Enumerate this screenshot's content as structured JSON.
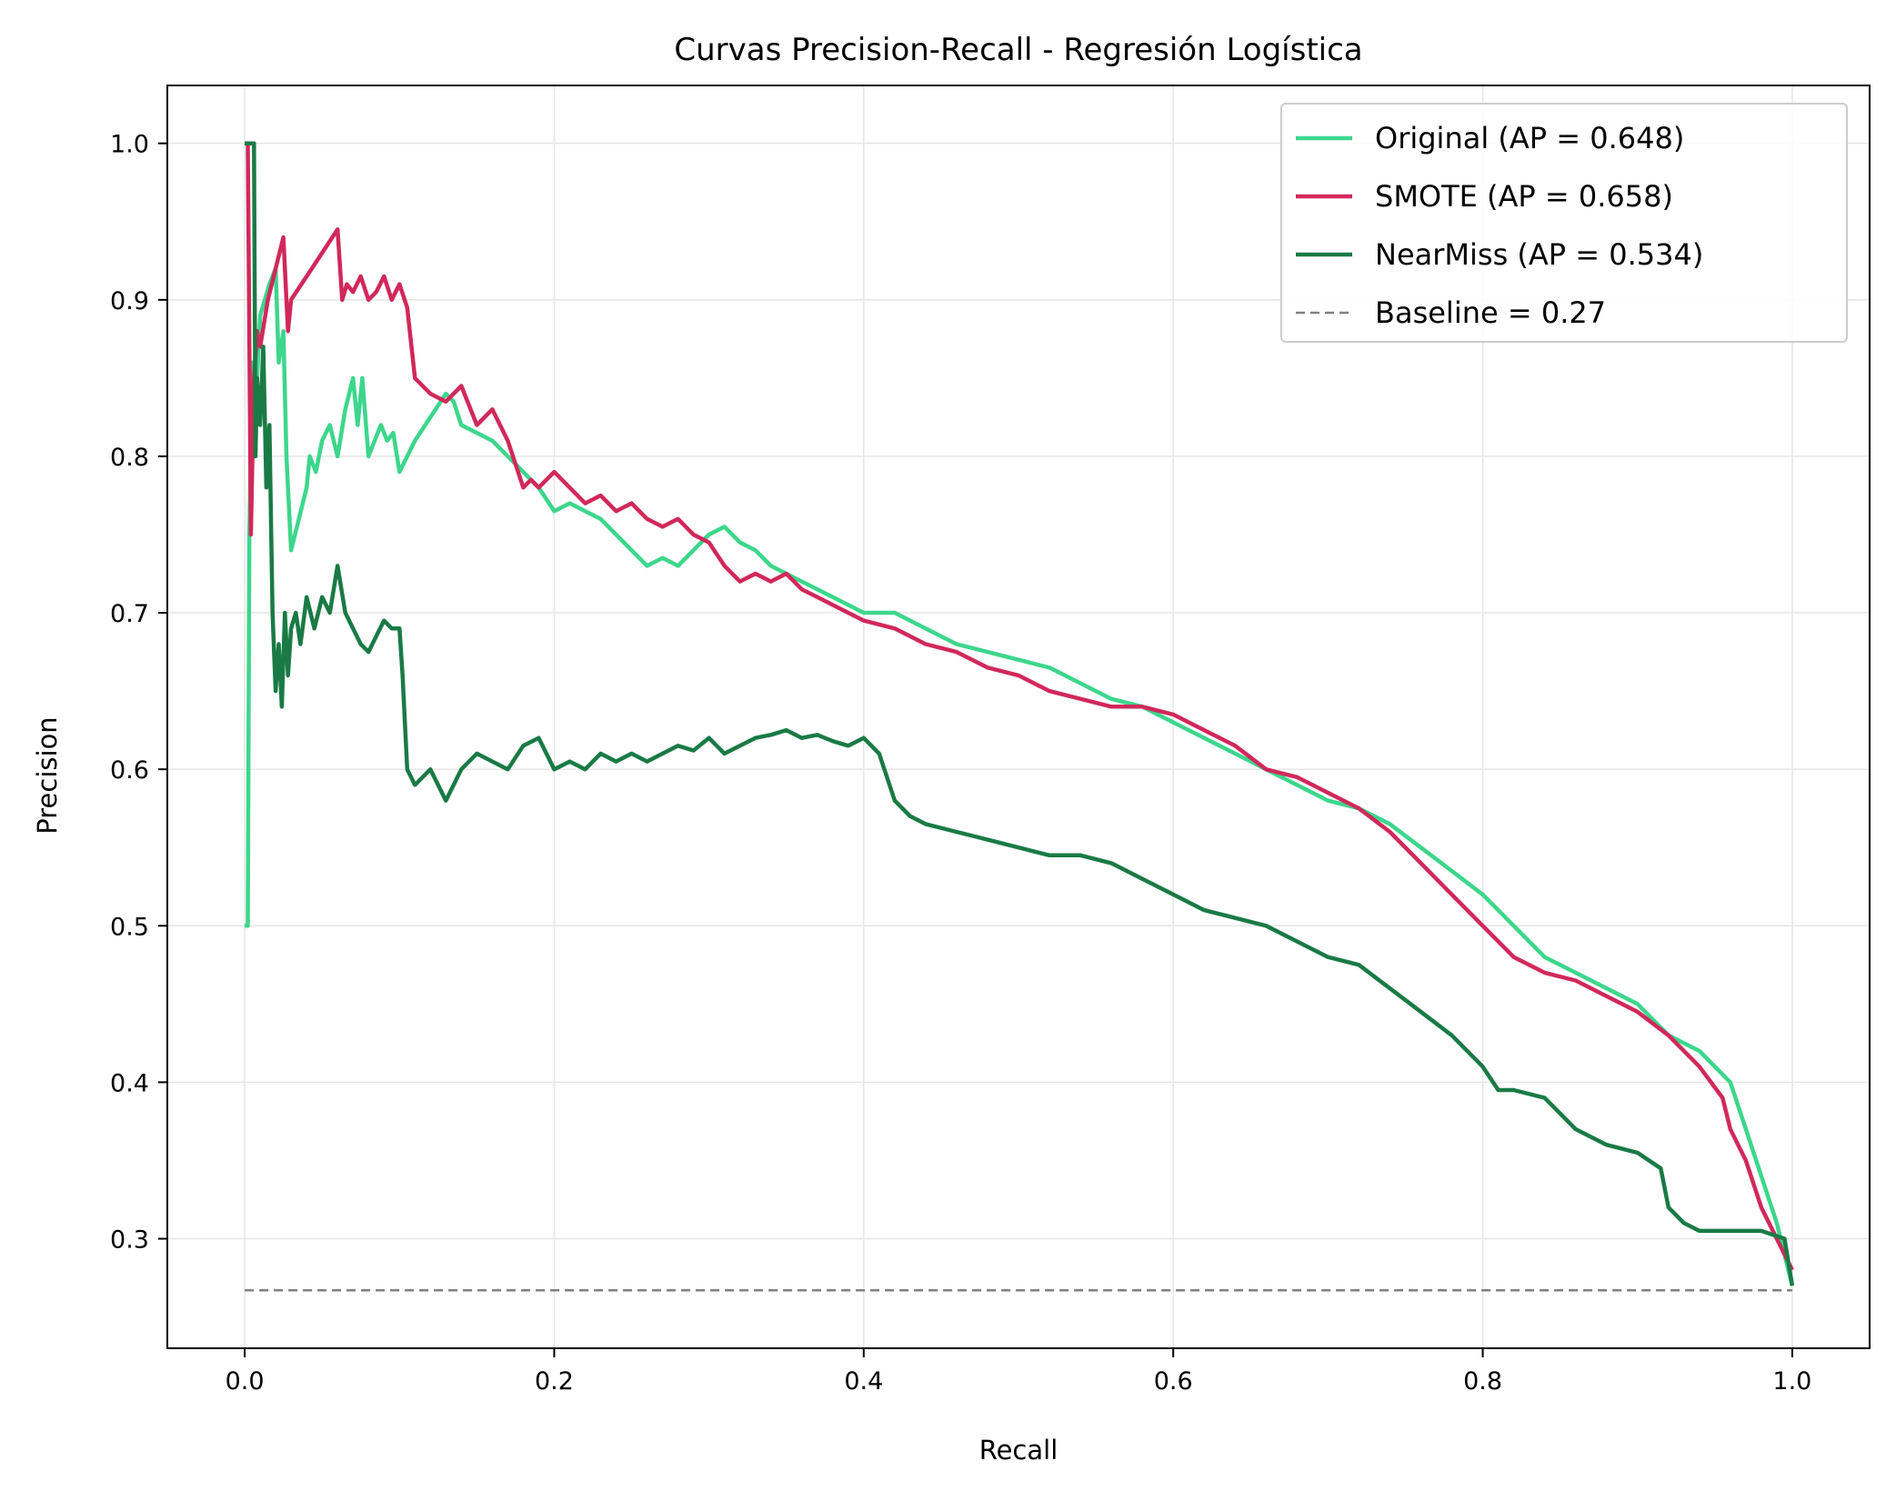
{
  "chart_data": {
    "type": "line",
    "title": "Curvas Precision-Recall - Regresión Logística",
    "xlabel": "Recall",
    "ylabel": "Precision",
    "xlim": [
      -0.05,
      1.05
    ],
    "ylim": [
      0.23,
      1.037
    ],
    "xticks": [
      0.0,
      0.2,
      0.4,
      0.6,
      0.8,
      1.0
    ],
    "xtick_labels": [
      "0.0",
      "0.2",
      "0.4",
      "0.6",
      "0.8",
      "1.0"
    ],
    "yticks": [
      0.3,
      0.4,
      0.5,
      0.6,
      0.7,
      0.8,
      0.9,
      1.0
    ],
    "ytick_labels": [
      "0.3",
      "0.4",
      "0.5",
      "0.6",
      "0.7",
      "0.8",
      "0.9",
      "1.0"
    ],
    "grid": true,
    "legend_position": "top-right",
    "series": [
      {
        "name": "Original (AP = 0.648)",
        "color": "#3dd68c",
        "style": "solid",
        "x": [
          0.0,
          0.002,
          0.003,
          0.005,
          0.007,
          0.01,
          0.013,
          0.016,
          0.02,
          0.022,
          0.025,
          0.027,
          0.03,
          0.035,
          0.04,
          0.042,
          0.046,
          0.05,
          0.055,
          0.06,
          0.065,
          0.07,
          0.073,
          0.076,
          0.08,
          0.084,
          0.088,
          0.092,
          0.096,
          0.1,
          0.105,
          0.11,
          0.12,
          0.13,
          0.135,
          0.14,
          0.15,
          0.16,
          0.17,
          0.18,
          0.19,
          0.2,
          0.21,
          0.22,
          0.23,
          0.24,
          0.25,
          0.26,
          0.27,
          0.28,
          0.29,
          0.3,
          0.31,
          0.32,
          0.33,
          0.34,
          0.35,
          0.36,
          0.37,
          0.38,
          0.39,
          0.4,
          0.42,
          0.44,
          0.46,
          0.48,
          0.5,
          0.52,
          0.54,
          0.56,
          0.58,
          0.6,
          0.62,
          0.64,
          0.66,
          0.68,
          0.7,
          0.72,
          0.74,
          0.76,
          0.78,
          0.8,
          0.82,
          0.84,
          0.86,
          0.88,
          0.9,
          0.92,
          0.94,
          0.96,
          0.97,
          0.98,
          0.99,
          1.0
        ],
        "y": [
          0.5,
          0.5,
          0.75,
          0.86,
          0.83,
          0.89,
          0.9,
          0.91,
          0.92,
          0.86,
          0.88,
          0.8,
          0.74,
          0.76,
          0.78,
          0.8,
          0.79,
          0.81,
          0.82,
          0.8,
          0.83,
          0.85,
          0.82,
          0.85,
          0.8,
          0.81,
          0.82,
          0.81,
          0.815,
          0.79,
          0.8,
          0.81,
          0.825,
          0.84,
          0.835,
          0.82,
          0.815,
          0.81,
          0.8,
          0.79,
          0.78,
          0.765,
          0.77,
          0.765,
          0.76,
          0.75,
          0.74,
          0.73,
          0.735,
          0.73,
          0.74,
          0.75,
          0.755,
          0.745,
          0.74,
          0.73,
          0.725,
          0.72,
          0.715,
          0.71,
          0.705,
          0.7,
          0.7,
          0.69,
          0.68,
          0.675,
          0.67,
          0.665,
          0.655,
          0.645,
          0.64,
          0.63,
          0.62,
          0.61,
          0.6,
          0.59,
          0.58,
          0.575,
          0.565,
          0.55,
          0.535,
          0.52,
          0.5,
          0.48,
          0.47,
          0.46,
          0.45,
          0.43,
          0.42,
          0.4,
          0.37,
          0.34,
          0.31,
          0.27
        ]
      },
      {
        "name": "SMOTE (AP = 0.658)",
        "color": "#d0295a",
        "style": "solid",
        "x": [
          0.002,
          0.004,
          0.006,
          0.008,
          0.01,
          0.015,
          0.02,
          0.025,
          0.028,
          0.03,
          0.04,
          0.05,
          0.06,
          0.063,
          0.066,
          0.07,
          0.075,
          0.08,
          0.085,
          0.09,
          0.095,
          0.1,
          0.105,
          0.11,
          0.12,
          0.13,
          0.14,
          0.15,
          0.16,
          0.17,
          0.18,
          0.185,
          0.19,
          0.2,
          0.21,
          0.22,
          0.23,
          0.24,
          0.25,
          0.26,
          0.27,
          0.28,
          0.29,
          0.3,
          0.31,
          0.32,
          0.33,
          0.34,
          0.35,
          0.36,
          0.37,
          0.38,
          0.39,
          0.4,
          0.42,
          0.44,
          0.46,
          0.48,
          0.5,
          0.52,
          0.54,
          0.56,
          0.58,
          0.6,
          0.62,
          0.64,
          0.66,
          0.68,
          0.7,
          0.72,
          0.74,
          0.76,
          0.78,
          0.8,
          0.82,
          0.84,
          0.86,
          0.88,
          0.9,
          0.92,
          0.94,
          0.955,
          0.96,
          0.97,
          0.98,
          0.99,
          1.0
        ],
        "y": [
          1.0,
          0.75,
          0.85,
          0.88,
          0.87,
          0.9,
          0.92,
          0.94,
          0.88,
          0.9,
          0.915,
          0.93,
          0.945,
          0.9,
          0.91,
          0.905,
          0.915,
          0.9,
          0.905,
          0.915,
          0.9,
          0.91,
          0.895,
          0.85,
          0.84,
          0.835,
          0.845,
          0.82,
          0.83,
          0.81,
          0.78,
          0.785,
          0.78,
          0.79,
          0.78,
          0.77,
          0.775,
          0.765,
          0.77,
          0.76,
          0.755,
          0.76,
          0.75,
          0.745,
          0.73,
          0.72,
          0.725,
          0.72,
          0.725,
          0.715,
          0.71,
          0.705,
          0.7,
          0.695,
          0.69,
          0.68,
          0.675,
          0.665,
          0.66,
          0.65,
          0.645,
          0.64,
          0.64,
          0.635,
          0.625,
          0.615,
          0.6,
          0.595,
          0.585,
          0.575,
          0.56,
          0.54,
          0.52,
          0.5,
          0.48,
          0.47,
          0.465,
          0.455,
          0.445,
          0.43,
          0.41,
          0.39,
          0.37,
          0.35,
          0.32,
          0.3,
          0.28
        ]
      },
      {
        "name": "NearMiss (AP = 0.534)",
        "color": "#1a7a46",
        "style": "solid",
        "x": [
          0.0,
          0.006,
          0.007,
          0.008,
          0.01,
          0.012,
          0.014,
          0.016,
          0.018,
          0.02,
          0.022,
          0.024,
          0.026,
          0.028,
          0.03,
          0.033,
          0.036,
          0.04,
          0.045,
          0.05,
          0.055,
          0.06,
          0.065,
          0.07,
          0.075,
          0.08,
          0.085,
          0.09,
          0.095,
          0.1,
          0.102,
          0.105,
          0.11,
          0.12,
          0.13,
          0.14,
          0.15,
          0.16,
          0.17,
          0.18,
          0.19,
          0.2,
          0.21,
          0.22,
          0.23,
          0.24,
          0.25,
          0.26,
          0.27,
          0.28,
          0.29,
          0.3,
          0.31,
          0.32,
          0.33,
          0.34,
          0.35,
          0.36,
          0.37,
          0.38,
          0.39,
          0.4,
          0.41,
          0.42,
          0.43,
          0.44,
          0.46,
          0.48,
          0.5,
          0.52,
          0.54,
          0.56,
          0.58,
          0.6,
          0.62,
          0.64,
          0.66,
          0.68,
          0.7,
          0.72,
          0.74,
          0.76,
          0.78,
          0.8,
          0.81,
          0.82,
          0.84,
          0.86,
          0.88,
          0.9,
          0.915,
          0.92,
          0.93,
          0.94,
          0.96,
          0.98,
          0.995,
          1.0
        ],
        "y": [
          1.0,
          1.0,
          0.8,
          0.85,
          0.82,
          0.87,
          0.78,
          0.82,
          0.7,
          0.65,
          0.68,
          0.64,
          0.7,
          0.66,
          0.69,
          0.7,
          0.68,
          0.71,
          0.69,
          0.71,
          0.7,
          0.73,
          0.7,
          0.69,
          0.68,
          0.675,
          0.685,
          0.695,
          0.69,
          0.69,
          0.66,
          0.6,
          0.59,
          0.6,
          0.58,
          0.6,
          0.61,
          0.605,
          0.6,
          0.615,
          0.62,
          0.6,
          0.605,
          0.6,
          0.61,
          0.605,
          0.61,
          0.605,
          0.61,
          0.615,
          0.612,
          0.62,
          0.61,
          0.615,
          0.62,
          0.622,
          0.625,
          0.62,
          0.622,
          0.618,
          0.615,
          0.62,
          0.61,
          0.58,
          0.57,
          0.565,
          0.56,
          0.555,
          0.55,
          0.545,
          0.545,
          0.54,
          0.53,
          0.52,
          0.51,
          0.505,
          0.5,
          0.49,
          0.48,
          0.475,
          0.46,
          0.445,
          0.43,
          0.41,
          0.395,
          0.395,
          0.39,
          0.37,
          0.36,
          0.355,
          0.345,
          0.32,
          0.31,
          0.305,
          0.305,
          0.305,
          0.3,
          0.27
        ]
      },
      {
        "name": "Baseline = 0.27",
        "color": "#808080",
        "style": "dashed",
        "x": [
          0.0,
          1.0
        ],
        "y": [
          0.267,
          0.267
        ]
      }
    ]
  }
}
